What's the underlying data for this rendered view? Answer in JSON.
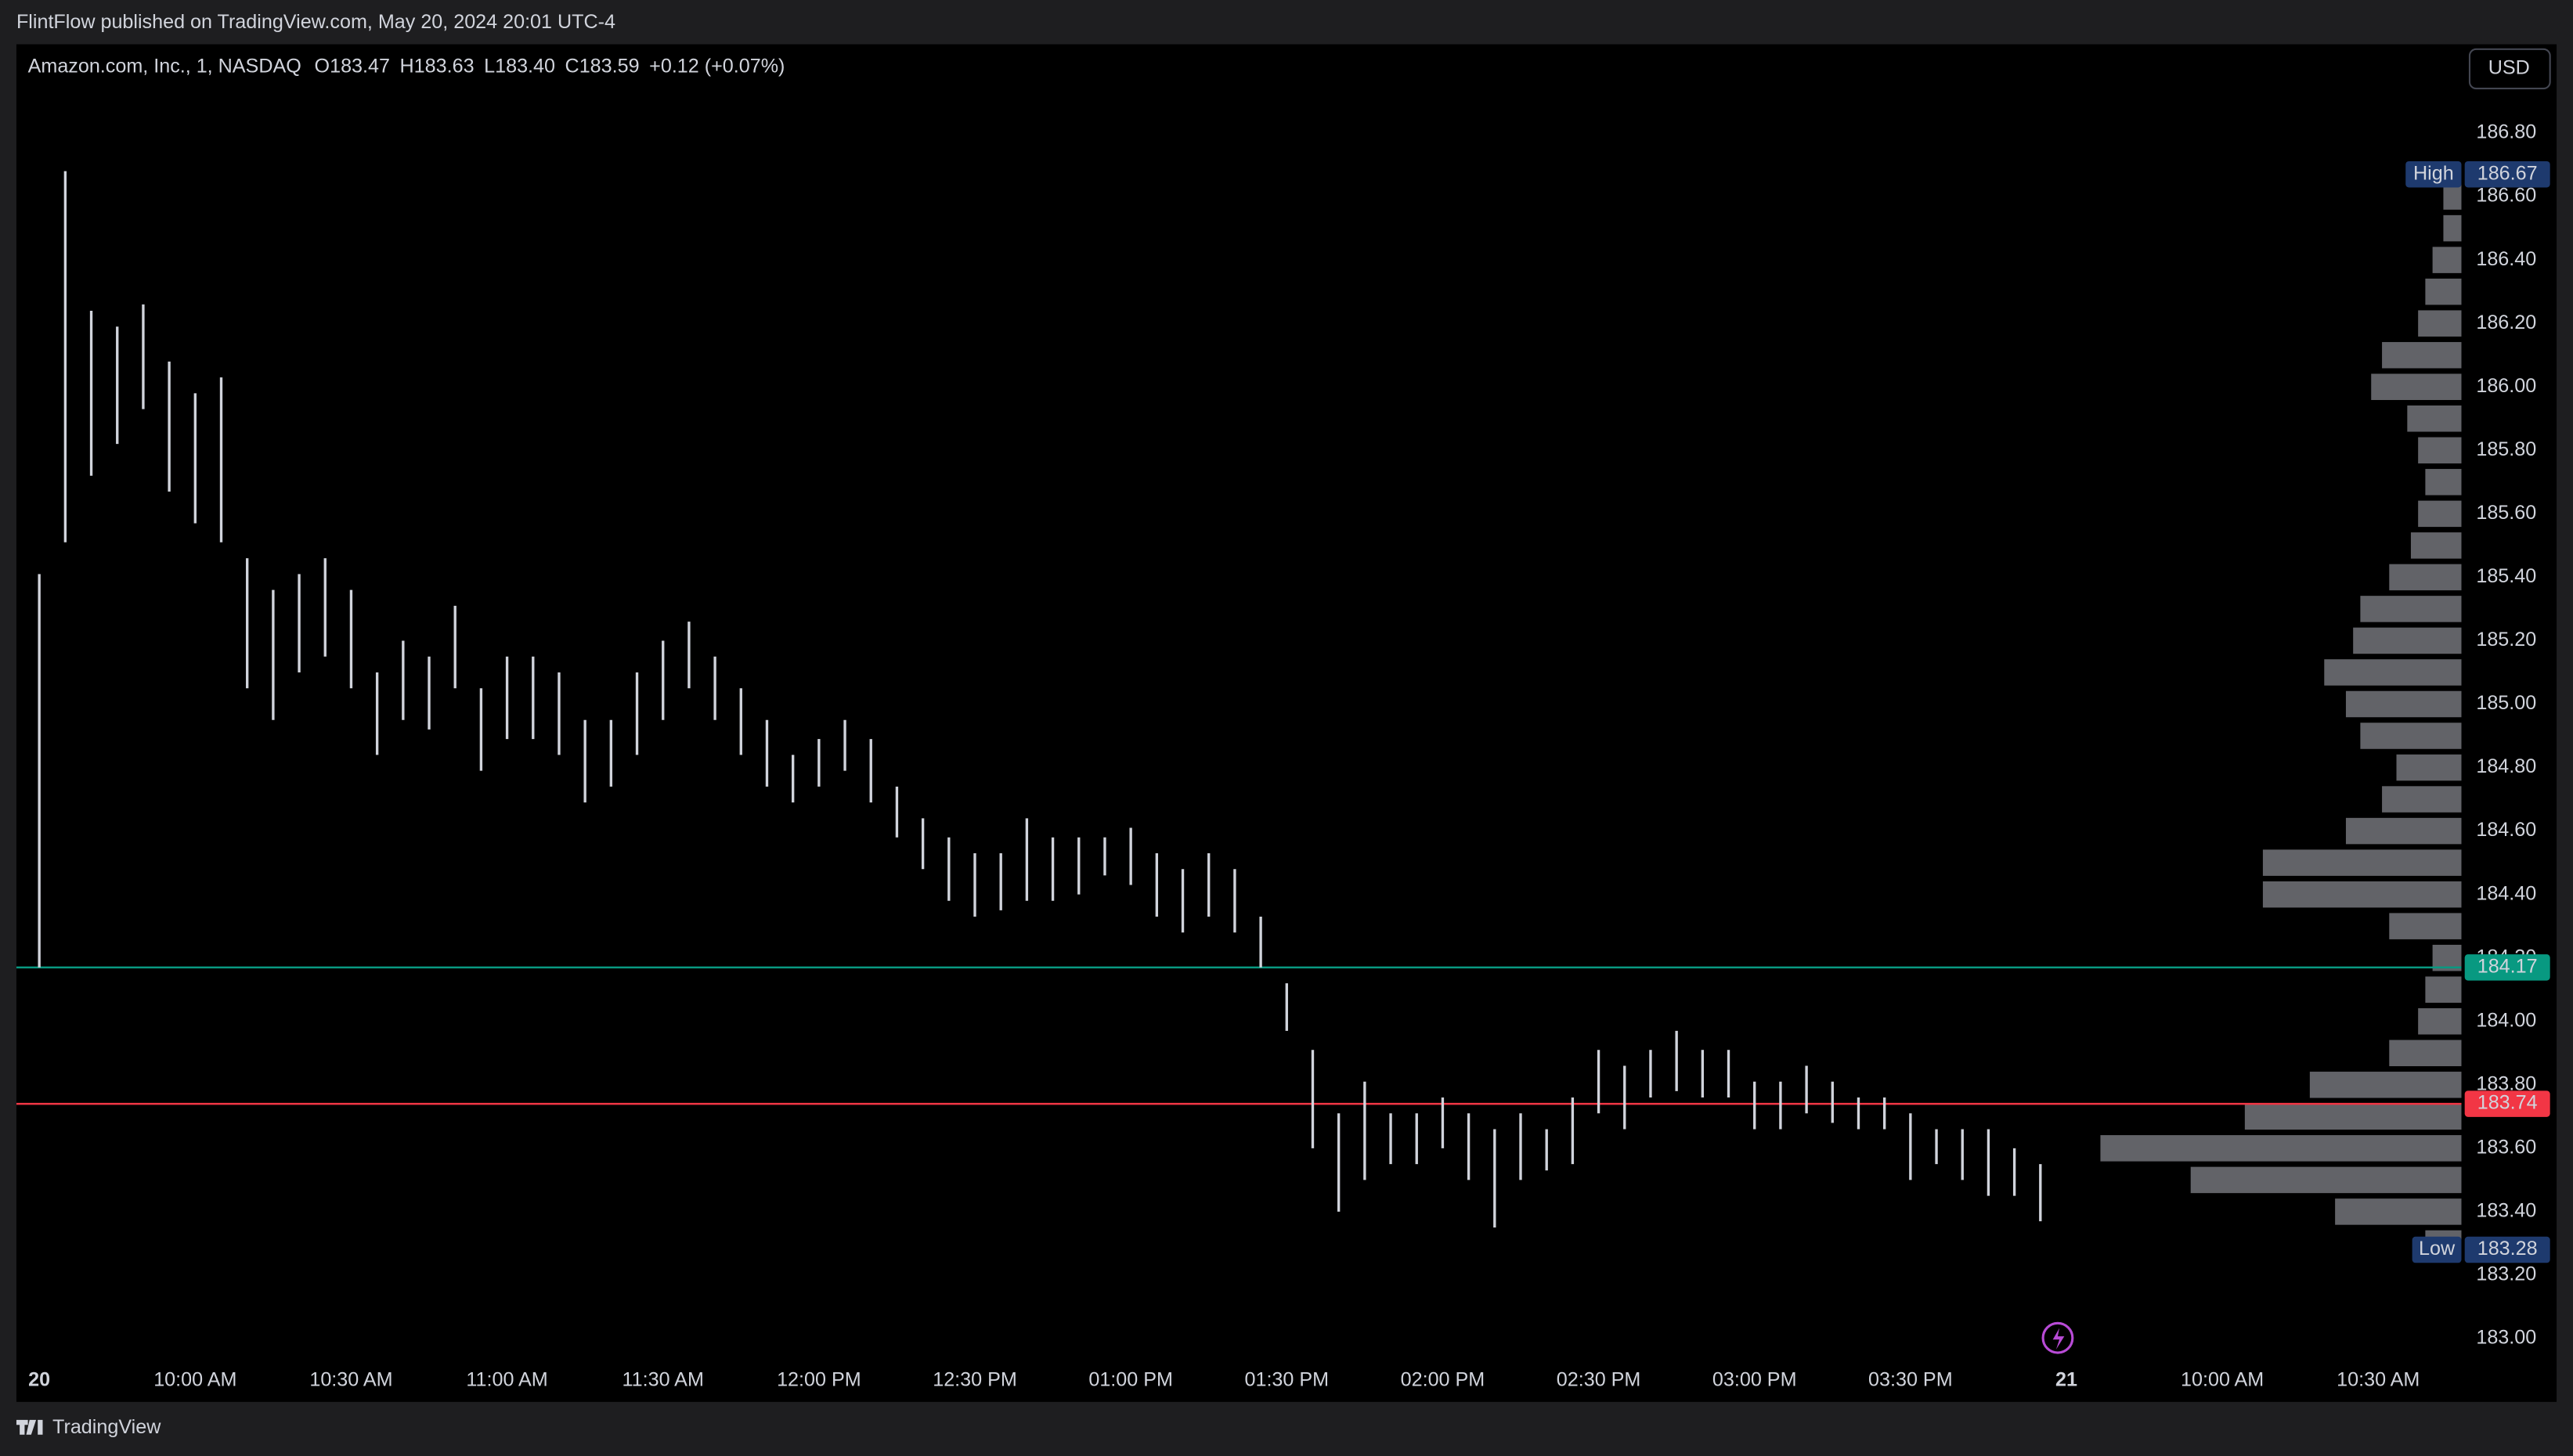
{
  "header": {
    "publisher": "FlintFlow published on TradingView.com, May 20, 2024 20:01 UTC-4",
    "currency": "USD",
    "footer": "TradingView"
  },
  "chart_data": {
    "type": "range",
    "title": "Amazon.com, Inc., 1, NASDAQ",
    "ohlc_legend": [
      "O183.47",
      "H183.63",
      "L183.40",
      "C183.59",
      "+0.12 (+0.07%)"
    ],
    "color": "#d1d4dc",
    "x": [
      0,
      5,
      10,
      15,
      20,
      25,
      30,
      35,
      40,
      45,
      50,
      55,
      60,
      65,
      70,
      75,
      80,
      85,
      90,
      95,
      100,
      105,
      110,
      115,
      120,
      125,
      130,
      135,
      140,
      145,
      150,
      155,
      160,
      165,
      170,
      175,
      180,
      185,
      190,
      195,
      200,
      205,
      210,
      215,
      220,
      225,
      230,
      235,
      240,
      245,
      250,
      255,
      260,
      265,
      270,
      275,
      280,
      285,
      290,
      295,
      300,
      305,
      310,
      315,
      320,
      325,
      330,
      335,
      340,
      345,
      350,
      355,
      360,
      365,
      370,
      375,
      380,
      385
    ],
    "lows": [
      184.17,
      185.51,
      185.72,
      185.82,
      185.93,
      185.67,
      185.57,
      185.51,
      185.05,
      184.95,
      185.1,
      185.15,
      185.05,
      184.84,
      184.95,
      184.92,
      185.05,
      184.79,
      184.89,
      184.89,
      184.84,
      184.69,
      184.74,
      184.84,
      184.95,
      185.05,
      184.95,
      184.84,
      184.74,
      184.69,
      184.74,
      184.79,
      184.69,
      184.58,
      184.48,
      184.38,
      184.33,
      184.35,
      184.38,
      184.38,
      184.4,
      184.46,
      184.43,
      184.33,
      184.28,
      184.33,
      184.28,
      184.17,
      183.97,
      183.6,
      183.4,
      183.5,
      183.55,
      183.55,
      183.6,
      183.5,
      183.35,
      183.5,
      183.53,
      183.55,
      183.71,
      183.66,
      183.76,
      183.78,
      183.76,
      183.76,
      183.66,
      183.66,
      183.71,
      183.68,
      183.66,
      183.66,
      183.5,
      183.55,
      183.5,
      183.45,
      183.45,
      183.37
    ],
    "highs": [
      185.41,
      186.68,
      186.24,
      186.19,
      186.26,
      186.08,
      185.98,
      186.03,
      185.46,
      185.36,
      185.41,
      185.46,
      185.36,
      185.1,
      185.2,
      185.15,
      185.31,
      185.05,
      185.15,
      185.15,
      185.1,
      184.95,
      184.95,
      185.1,
      185.2,
      185.26,
      185.15,
      185.05,
      184.95,
      184.84,
      184.89,
      184.95,
      184.89,
      184.74,
      184.64,
      184.58,
      184.53,
      184.53,
      184.64,
      184.58,
      184.58,
      184.58,
      184.61,
      184.53,
      184.48,
      184.53,
      184.48,
      184.33,
      184.12,
      183.91,
      183.71,
      183.81,
      183.71,
      183.71,
      183.76,
      183.71,
      183.66,
      183.71,
      183.66,
      183.76,
      183.91,
      183.86,
      183.91,
      183.97,
      183.91,
      183.91,
      183.81,
      183.81,
      183.86,
      183.81,
      183.76,
      183.76,
      183.71,
      183.66,
      183.66,
      183.66,
      183.6,
      183.55
    ],
    "xlim": [
      -4.4,
      466
    ],
    "ylim": [
      182.94,
      187.08
    ],
    "xticks": [
      {
        "value": 0,
        "label": "20"
      },
      {
        "value": 30,
        "label": "10:00 AM"
      },
      {
        "value": 60,
        "label": "10:30 AM"
      },
      {
        "value": 90,
        "label": "11:00 AM"
      },
      {
        "value": 120,
        "label": "11:30 AM"
      },
      {
        "value": 150,
        "label": "12:00 PM"
      },
      {
        "value": 180,
        "label": "12:30 PM"
      },
      {
        "value": 210,
        "label": "01:00 PM"
      },
      {
        "value": 240,
        "label": "01:30 PM"
      },
      {
        "value": 270,
        "label": "02:00 PM"
      },
      {
        "value": 300,
        "label": "02:30 PM"
      },
      {
        "value": 330,
        "label": "03:00 PM"
      },
      {
        "value": 360,
        "label": "03:30 PM"
      },
      {
        "value": 390,
        "label": "21"
      },
      {
        "value": 420,
        "label": "10:00 AM"
      },
      {
        "value": 450,
        "label": "10:30 AM"
      }
    ],
    "yticks": [
      {
        "value": 183,
        "label": "183.00"
      },
      {
        "value": 183.2,
        "label": "183.20"
      },
      {
        "value": 183.4,
        "label": "183.40"
      },
      {
        "value": 183.6,
        "label": "183.60"
      },
      {
        "value": 183.8,
        "label": "183.80"
      },
      {
        "value": 184,
        "label": "184.00"
      },
      {
        "value": 184.2,
        "label": "184.20"
      },
      {
        "value": 184.4,
        "label": "184.40"
      },
      {
        "value": 184.6,
        "label": "184.60"
      },
      {
        "value": 184.8,
        "label": "184.80"
      },
      {
        "value": 185,
        "label": "185.00"
      },
      {
        "value": 185.2,
        "label": "185.20"
      },
      {
        "value": 185.4,
        "label": "185.40"
      },
      {
        "value": 185.6,
        "label": "185.60"
      },
      {
        "value": 185.8,
        "label": "185.80"
      },
      {
        "value": 186,
        "label": "186.00"
      },
      {
        "value": 186.2,
        "label": "186.20"
      },
      {
        "value": 186.4,
        "label": "186.40"
      },
      {
        "value": 186.6,
        "label": "186.60"
      },
      {
        "value": 186.8,
        "label": "186.80"
      }
    ],
    "price_lines": [
      {
        "value": 184.17,
        "color": "#089981"
      },
      {
        "value": 183.74,
        "color": "#f23645"
      }
    ],
    "high": {
      "label": "High",
      "value": 186.67
    },
    "low": {
      "label": "Low",
      "value": 183.28
    },
    "volume_profile": {
      "color": "#b2b5be",
      "prices": [
        186.6,
        186.5,
        186.4,
        186.3,
        186.2,
        186.1,
        186.0,
        185.9,
        185.8,
        185.7,
        185.6,
        185.5,
        185.4,
        185.3,
        185.2,
        185.1,
        185.0,
        184.9,
        184.8,
        184.7,
        184.6,
        184.5,
        184.4,
        184.3,
        184.2,
        184.1,
        184.0,
        183.9,
        183.8,
        183.7,
        183.6,
        183.5,
        183.4,
        183.3
      ],
      "values": [
        5,
        5,
        8,
        10,
        12,
        22,
        25,
        15,
        12,
        10,
        12,
        14,
        20,
        28,
        30,
        38,
        32,
        28,
        18,
        22,
        32,
        55,
        55,
        20,
        8,
        10,
        12,
        20,
        42,
        60,
        100,
        75,
        35,
        10
      ]
    }
  }
}
